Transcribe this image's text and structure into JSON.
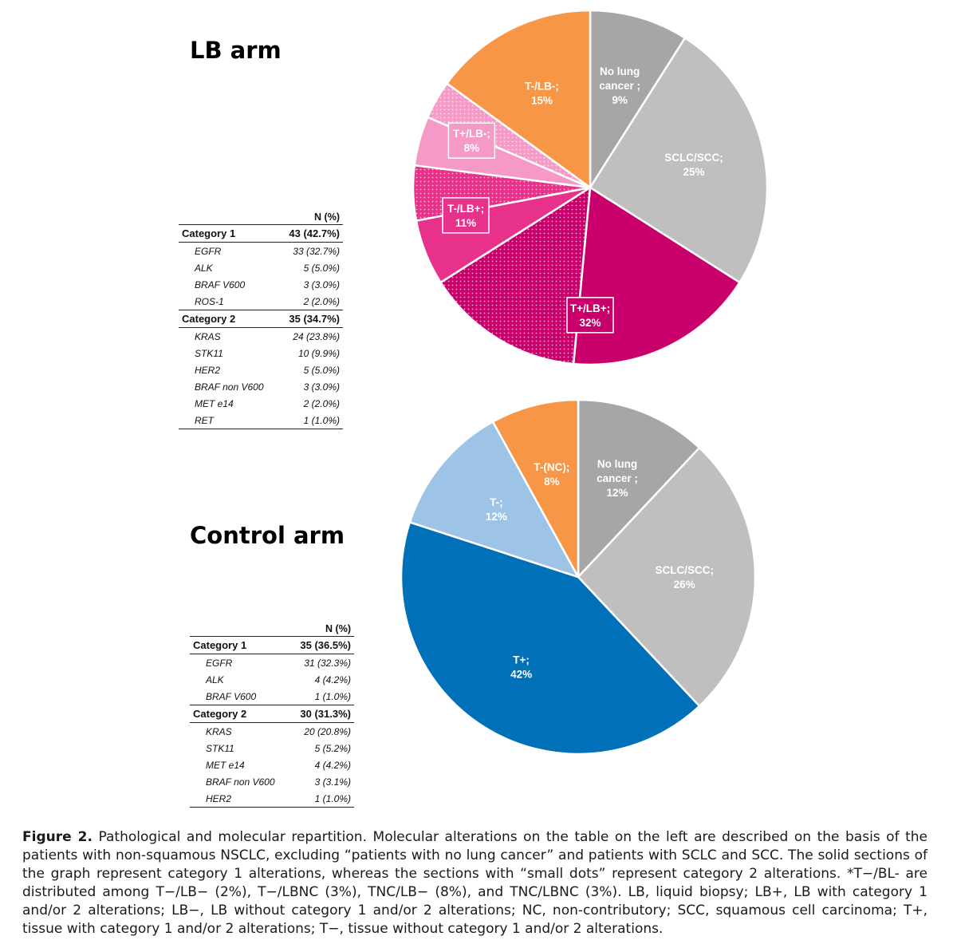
{
  "colors": {
    "grey_dark": "#a6a6a6",
    "grey_light": "#bfbfbf",
    "magenta_dark": "#c9006b",
    "magenta_mid": "#e8318a",
    "pink_light": "#f59ac6",
    "orange": "#f79646",
    "blue_dark": "#0070b8",
    "blue_light": "#9dc3e6"
  },
  "chart_data": [
    {
      "type": "pie",
      "title": "LB arm",
      "start_angle_deg": 0,
      "direction": "clockwise",
      "slices": [
        {
          "label": "No lung cancer ;",
          "pct_label": "9%",
          "value": 9,
          "color": "#a6a6a6",
          "pattern": "solid",
          "boxed": false,
          "text_color": "#ffffff"
        },
        {
          "label": "SCLC/SCC;",
          "pct_label": "25%",
          "value": 25,
          "color": "#bfbfbf",
          "pattern": "solid",
          "boxed": false,
          "text_color": "#ffffff"
        },
        {
          "label": "T+/LB+;",
          "pct_label": "32%",
          "value": 17.5,
          "color": "#c9006b",
          "pattern": "solid",
          "boxed": true,
          "text_color": "#ffffff",
          "show_label": true
        },
        {
          "label": "",
          "pct_label": "",
          "value": 14.5,
          "color": "#c9006b",
          "pattern": "dots",
          "boxed": false,
          "show_label": false
        },
        {
          "label": "T-/LB+;",
          "pct_label": "11%",
          "value": 6,
          "color": "#e8318a",
          "pattern": "solid",
          "boxed": true,
          "text_color": "#ffffff",
          "show_label": true
        },
        {
          "label": "",
          "pct_label": "",
          "value": 5,
          "color": "#e8318a",
          "pattern": "dots",
          "boxed": false,
          "show_label": false
        },
        {
          "label": "T+/LB-;",
          "pct_label": "8%",
          "value": 4.5,
          "color": "#f59ac6",
          "pattern": "solid",
          "boxed": true,
          "text_color": "#ffffff",
          "show_label": true
        },
        {
          "label": "",
          "pct_label": "",
          "value": 3.5,
          "color": "#f59ac6",
          "pattern": "dots",
          "boxed": false,
          "show_label": false
        },
        {
          "label": "T-/LB-;",
          "pct_label": "15%",
          "value": 15,
          "color": "#f79646",
          "pattern": "solid",
          "boxed": false,
          "text_color": "#ffffff"
        }
      ]
    },
    {
      "type": "pie",
      "title": "Control arm",
      "start_angle_deg": 0,
      "direction": "clockwise",
      "slices": [
        {
          "label": "No lung cancer ;",
          "pct_label": "12%",
          "value": 12,
          "color": "#a6a6a6",
          "pattern": "solid",
          "boxed": false,
          "text_color": "#ffffff"
        },
        {
          "label": "SCLC/SCC;",
          "pct_label": "26%",
          "value": 26,
          "color": "#bfbfbf",
          "pattern": "solid",
          "boxed": false,
          "text_color": "#ffffff"
        },
        {
          "label": "T+;",
          "pct_label": "42%",
          "value": 42,
          "color": "#0070b8",
          "pattern": "solid",
          "boxed": false,
          "text_color": "#ffffff"
        },
        {
          "label": "T-;",
          "pct_label": "12%",
          "value": 12,
          "color": "#9dc3e6",
          "pattern": "solid",
          "boxed": false,
          "text_color": "#ffffff"
        },
        {
          "label": "T-(NC);",
          "pct_label": "8%",
          "value": 8,
          "color": "#f79646",
          "pattern": "solid",
          "boxed": false,
          "text_color": "#ffffff"
        }
      ]
    }
  ],
  "lb_table": {
    "header": "N (%)",
    "categories": [
      {
        "name": "Category 1",
        "value": "43 (42.7%)",
        "items": [
          {
            "name": "EGFR",
            "value": "33 (32.7%)"
          },
          {
            "name": "ALK",
            "value": "5 (5.0%)"
          },
          {
            "name": "BRAF V600",
            "value": "3 (3.0%)"
          },
          {
            "name": "ROS-1",
            "value": "2 (2.0%)"
          }
        ]
      },
      {
        "name": "Category 2",
        "value": "35 (34.7%)",
        "items": [
          {
            "name": "KRAS",
            "value": "24 (23.8%)"
          },
          {
            "name": "STK11",
            "value": "10 (9.9%)"
          },
          {
            "name": "HER2",
            "value": "5 (5.0%)"
          },
          {
            "name": "BRAF non V600",
            "value": "3 (3.0%)"
          },
          {
            "name": "MET e14",
            "value": "2 (2.0%)"
          },
          {
            "name": "RET",
            "value": "1 (1.0%)"
          }
        ]
      }
    ]
  },
  "control_table": {
    "header": "N (%)",
    "categories": [
      {
        "name": "Category 1",
        "value": "35 (36.5%)",
        "items": [
          {
            "name": "EGFR",
            "value": "31 (32.3%)"
          },
          {
            "name": "ALK",
            "value": "4 (4.2%)"
          },
          {
            "name": "BRAF V600",
            "value": "1 (1.0%)"
          }
        ]
      },
      {
        "name": "Category 2",
        "value": "30 (31.3%)",
        "items": [
          {
            "name": "KRAS",
            "value": "20 (20.8%)"
          },
          {
            "name": "STK11",
            "value": "5 (5.2%)"
          },
          {
            "name": "MET e14",
            "value": "4 (4.2%)"
          },
          {
            "name": "BRAF non V600",
            "value": "3 (3.1%)"
          },
          {
            "name": "HER2",
            "value": "1 (1.0%)"
          }
        ]
      }
    ]
  },
  "caption": {
    "figure_label": "Figure 2.",
    "text": "Pathological and molecular repartition. Molecular alterations on the table on the left are described on the basis of the patients with non-squamous NSCLC, excluding “patients with no lung cancer” and patients with SCLC and SCC. The solid sections of the graph represent category 1 alterations, whereas the sections with “small dots” represent category 2 alterations. *T−/BL- are distributed among T−/LB− (2%), T−/LBNC (3%), TNC/LB− (8%), and TNC/LBNC (3%). LB, liquid biopsy; LB+, LB with category 1 and/or 2 alterations; LB−, LB without category 1 and/or 2 alterations; NC, non-contributory; SCC, squamous cell carcinoma; T+, tissue with category 1 and/or 2 alterations; T−, tissue without category 1 and/or 2 alterations."
  }
}
